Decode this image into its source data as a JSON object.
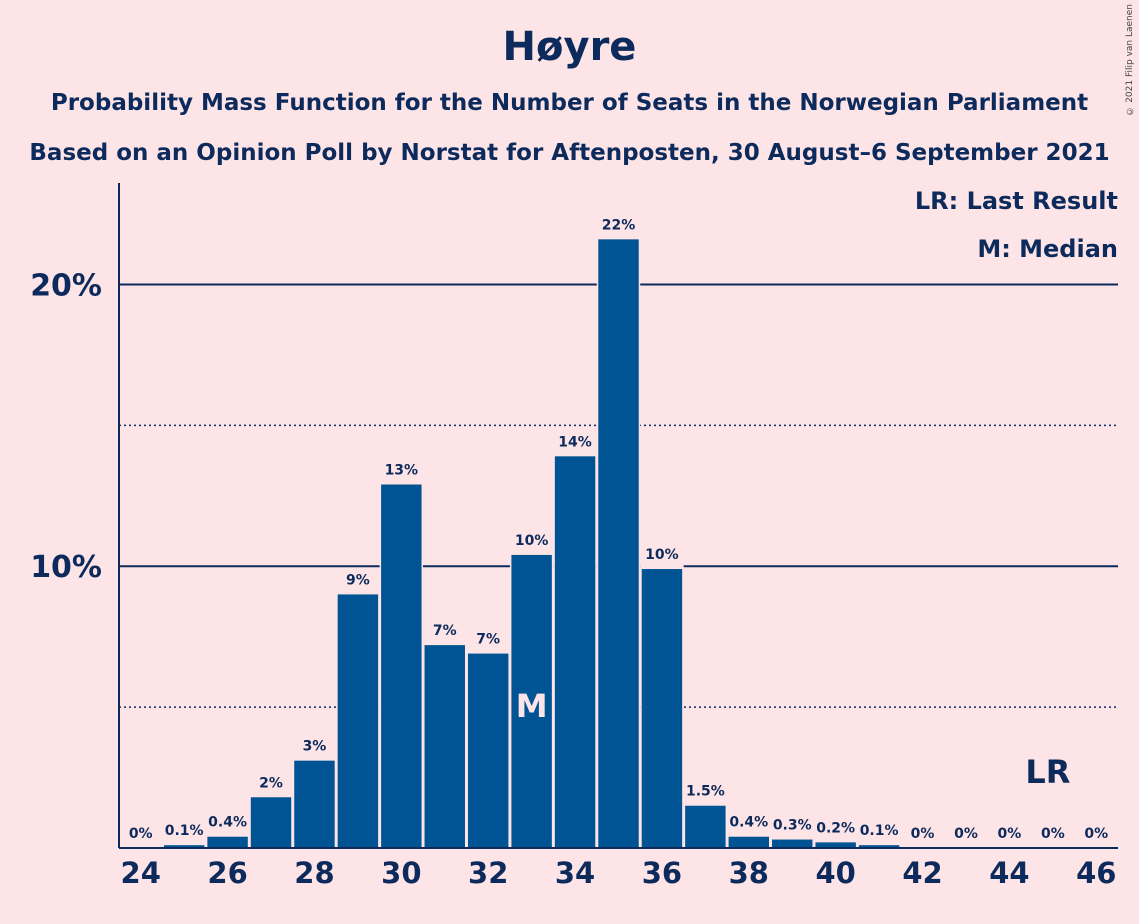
{
  "chart_data": {
    "type": "bar",
    "title": "Høyre",
    "subtitle": "Probability Mass Function for the Number of Seats in the Norwegian Parliament",
    "subtitle2": "Based on an Opinion Poll by Norstat for Aftenposten, 30 August–6 September 2021",
    "copyright": "© 2021 Filip van Laenen",
    "x": [
      24,
      25,
      26,
      27,
      28,
      29,
      30,
      31,
      32,
      33,
      34,
      35,
      36,
      37,
      38,
      39,
      40,
      41,
      42,
      43,
      44,
      45,
      46
    ],
    "values": [
      0,
      0.1,
      0.4,
      1.8,
      3.1,
      9.0,
      12.9,
      7.2,
      6.9,
      10.4,
      13.9,
      21.6,
      9.9,
      1.5,
      0.4,
      0.3,
      0.2,
      0.1,
      0,
      0,
      0,
      0,
      0
    ],
    "value_labels": [
      "0%",
      "0.1%",
      "0.4%",
      "2%",
      "3%",
      "9%",
      "13%",
      "7%",
      "7%",
      "10%",
      "14%",
      "22%",
      "10%",
      "1.5%",
      "0.4%",
      "0.3%",
      "0.2%",
      "0.1%",
      "0%",
      "0%",
      "0%",
      "0%",
      "0%"
    ],
    "x_tick_labels": [
      "24",
      "26",
      "28",
      "30",
      "32",
      "34",
      "36",
      "38",
      "40",
      "42",
      "44",
      "46"
    ],
    "y_tick_labels": [
      "10%",
      "20%"
    ],
    "ylim": [
      0,
      23.6
    ],
    "solid_gridlines": [
      10,
      20
    ],
    "dotted_gridlines": [
      5,
      15
    ],
    "median_seat": 33,
    "median_marker": "M",
    "last_result_seat": 45,
    "last_result_marker": "LR",
    "legend": [
      "LR: Last Result",
      "M: Median"
    ],
    "legend_position": "top-right",
    "colors": {
      "bar": "#005494",
      "background": "#fde5e7",
      "text": "#0d2a5c",
      "median_marker": "#fde5e7"
    }
  }
}
